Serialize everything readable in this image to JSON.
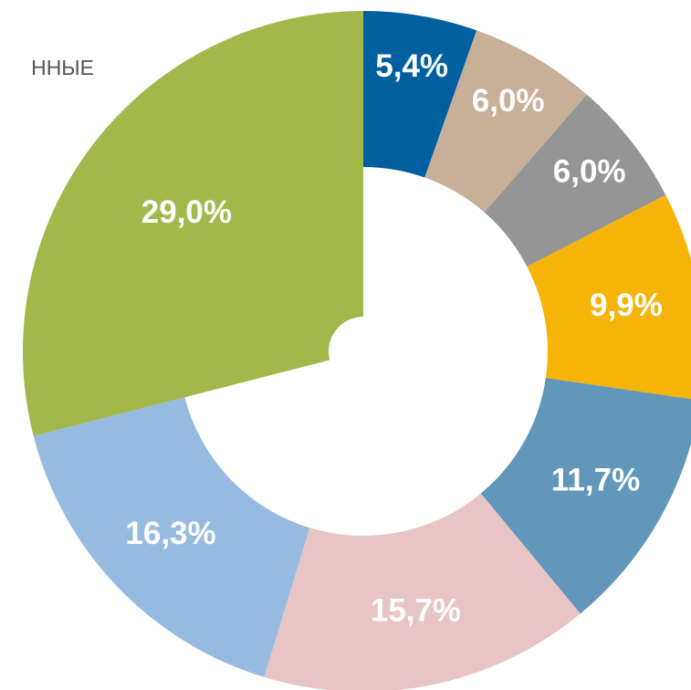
{
  "chart_data": {
    "type": "donut",
    "title": "ННЫЕ",
    "categories": [
      null,
      null,
      null,
      null,
      null,
      null,
      null,
      null
    ],
    "values": [
      5.4,
      6.0,
      6.0,
      9.9,
      11.7,
      15.7,
      16.3,
      29.0
    ],
    "value_labels": [
      "5,4%",
      "6,0%",
      "6,0%",
      "9,9%",
      "11,7%",
      "15,7%",
      "16,3%",
      "29,0%"
    ],
    "colors": [
      "#00609f",
      "#c7af98",
      "#959595",
      "#f5b407",
      "#6097bb",
      "#e8c4c5",
      "#97bbe0",
      "#a2b84b"
    ]
  }
}
